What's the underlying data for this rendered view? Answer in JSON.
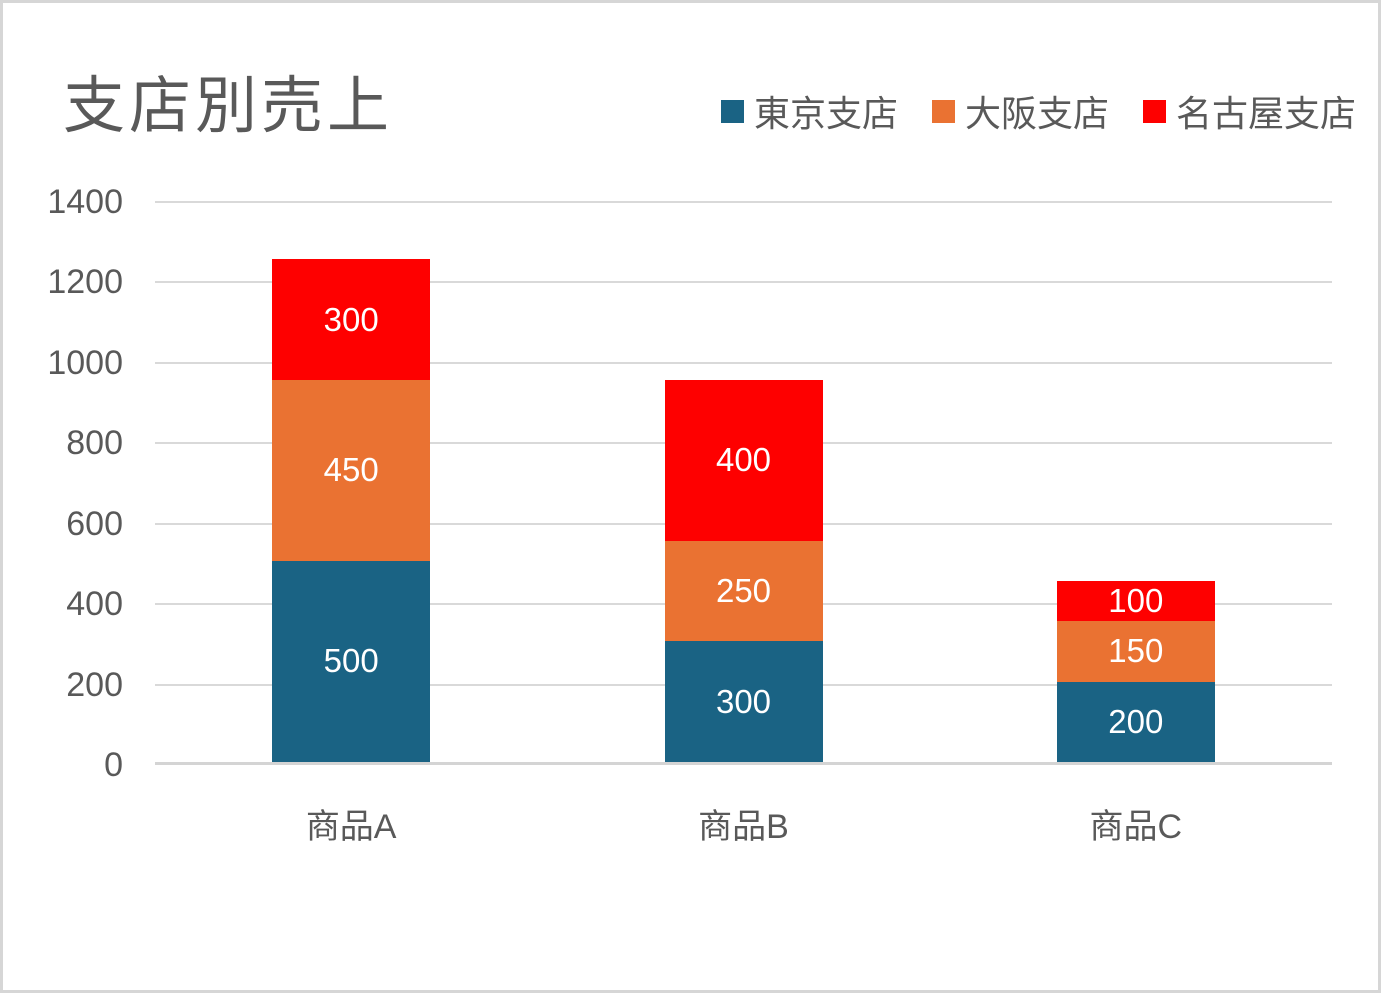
{
  "title": "支店別売上",
  "colors": {
    "background": "#ffffff",
    "border": "#d6d6d6",
    "grid": "#d9d9d9",
    "text": "#595959",
    "data_label": "#ffffff"
  },
  "chart_data": {
    "type": "bar",
    "subtype": "stacked",
    "title": "支店別売上",
    "categories": [
      "商品A",
      "商品B",
      "商品C"
    ],
    "series": [
      {
        "name": "東京支店",
        "color": "#1a6384",
        "values": [
          500,
          300,
          200
        ]
      },
      {
        "name": "大阪支店",
        "color": "#ea7232",
        "values": [
          450,
          250,
          150
        ]
      },
      {
        "name": "名古屋支店",
        "color": "#fe0000",
        "values": [
          300,
          400,
          100
        ]
      }
    ],
    "stack_totals": [
      1250,
      950,
      450
    ],
    "ylim": [
      0,
      1400
    ],
    "yticks": [
      0,
      200,
      400,
      600,
      800,
      1000,
      1200,
      1400
    ],
    "xlabel": "",
    "ylabel": "",
    "grid": true,
    "data_labels": true,
    "legend_position": "top-right"
  }
}
